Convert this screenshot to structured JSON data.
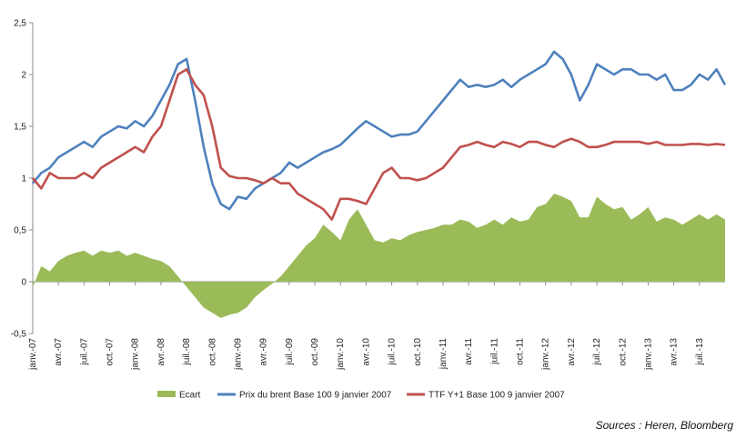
{
  "chart_data": {
    "type": "line",
    "title": "",
    "xlabel": "",
    "ylabel": "",
    "ylim": [
      -0.5,
      2.5
    ],
    "yticks": [
      "2,5",
      "2",
      "1,5",
      "1",
      "0,5",
      "0",
      "-0,5"
    ],
    "ytick_values": [
      2.5,
      2,
      1.5,
      1,
      0.5,
      0,
      -0.5
    ],
    "grid": false,
    "legend_position": "bottom",
    "x_ticks": [
      "janv.-07",
      "avr.-07",
      "juil.-07",
      "oct.-07",
      "janv.-08",
      "avr.-08",
      "juil.-08",
      "oct.-08",
      "janv.-09",
      "avr.-09",
      "juil.-09",
      "oct.-09",
      "janv.-10",
      "avr.-10",
      "juil.-10",
      "oct.-10",
      "janv.-11",
      "avr.-11",
      "juil.-11",
      "oct.-11",
      "janv.-12",
      "avr.-12",
      "juil.-12",
      "oct.-12",
      "janv.-13",
      "avr.-13",
      "juil.-13"
    ],
    "x": [
      "janv.-07",
      "févr.-07",
      "mars-07",
      "avr.-07",
      "mai-07",
      "juin-07",
      "juil.-07",
      "août-07",
      "sept.-07",
      "oct.-07",
      "nov.-07",
      "déc.-07",
      "janv.-08",
      "févr.-08",
      "mars-08",
      "avr.-08",
      "mai-08",
      "juin-08",
      "juil.-08",
      "août-08",
      "sept.-08",
      "oct.-08",
      "nov.-08",
      "déc.-08",
      "janv.-09",
      "févr.-09",
      "mars-09",
      "avr.-09",
      "mai-09",
      "juin-09",
      "juil.-09",
      "août-09",
      "sept.-09",
      "oct.-09",
      "nov.-09",
      "déc.-09",
      "janv.-10",
      "févr.-10",
      "mars-10",
      "avr.-10",
      "mai-10",
      "juin-10",
      "juil.-10",
      "août-10",
      "sept.-10",
      "oct.-10",
      "nov.-10",
      "déc.-10",
      "janv.-11",
      "févr.-11",
      "mars-11",
      "avr.-11",
      "mai-11",
      "juin-11",
      "juil.-11",
      "août-11",
      "sept.-11",
      "oct.-11",
      "nov.-11",
      "déc.-11",
      "janv.-12",
      "févr.-12",
      "mars-12",
      "avr.-12",
      "mai-12",
      "juin-12",
      "juil.-12",
      "août-12",
      "sept.-12",
      "oct.-12",
      "nov.-12",
      "déc.-12",
      "janv.-13",
      "févr.-13",
      "mars-13",
      "avr.-13",
      "mai-13",
      "juin-13",
      "juil.-13",
      "août-13",
      "sept.-13",
      "oct.-13"
    ],
    "series": [
      {
        "name": "Ecart",
        "type": "area",
        "color": "#9bbb59",
        "values": [
          -0.05,
          0.15,
          0.1,
          0.2,
          0.25,
          0.28,
          0.3,
          0.25,
          0.3,
          0.28,
          0.3,
          0.25,
          0.28,
          0.25,
          0.22,
          0.2,
          0.15,
          0.05,
          -0.05,
          -0.15,
          -0.25,
          -0.3,
          -0.35,
          -0.32,
          -0.3,
          -0.25,
          -0.15,
          -0.08,
          -0.02,
          0.05,
          0.15,
          0.25,
          0.35,
          0.42,
          0.55,
          0.48,
          0.4,
          0.6,
          0.7,
          0.55,
          0.4,
          0.38,
          0.42,
          0.4,
          0.45,
          0.48,
          0.5,
          0.52,
          0.55,
          0.55,
          0.6,
          0.58,
          0.52,
          0.55,
          0.6,
          0.55,
          0.62,
          0.58,
          0.6,
          0.72,
          0.75,
          0.85,
          0.82,
          0.78,
          0.62,
          0.62,
          0.82,
          0.75,
          0.7,
          0.72,
          0.6,
          0.65,
          0.72,
          0.58,
          0.62,
          0.6,
          0.55,
          0.6,
          0.65,
          0.6,
          0.65,
          0.6
        ]
      },
      {
        "name": "Prix du brent Base 100 9 janvier 2007",
        "type": "line",
        "color": "#4f81bd",
        "values": [
          0.95,
          1.05,
          1.1,
          1.2,
          1.25,
          1.3,
          1.35,
          1.3,
          1.4,
          1.45,
          1.5,
          1.48,
          1.55,
          1.5,
          1.6,
          1.75,
          1.9,
          2.1,
          2.15,
          1.75,
          1.3,
          0.95,
          0.75,
          0.7,
          0.82,
          0.8,
          0.9,
          0.95,
          1.0,
          1.05,
          1.15,
          1.1,
          1.15,
          1.2,
          1.25,
          1.28,
          1.32,
          1.4,
          1.48,
          1.55,
          1.5,
          1.45,
          1.4,
          1.42,
          1.42,
          1.45,
          1.55,
          1.65,
          1.75,
          1.85,
          1.95,
          1.88,
          1.9,
          1.88,
          1.9,
          1.95,
          1.88,
          1.95,
          2.0,
          2.05,
          2.1,
          2.22,
          2.15,
          2.0,
          1.75,
          1.9,
          2.1,
          2.05,
          2.0,
          2.05,
          2.05,
          2.0,
          2.0,
          1.95,
          2.0,
          1.85,
          1.85,
          1.9,
          2.0,
          1.95,
          2.05,
          1.9
        ]
      },
      {
        "name": "TTF Y+1 Base 100 9 janvier 2007",
        "type": "line",
        "color": "#c0504d",
        "values": [
          1.0,
          0.9,
          1.05,
          1.0,
          1.0,
          1.0,
          1.05,
          1.0,
          1.1,
          1.15,
          1.2,
          1.25,
          1.3,
          1.25,
          1.4,
          1.5,
          1.75,
          2.0,
          2.05,
          1.9,
          1.8,
          1.5,
          1.1,
          1.02,
          1.0,
          1.0,
          0.98,
          0.95,
          1.0,
          0.95,
          0.95,
          0.85,
          0.8,
          0.75,
          0.7,
          0.6,
          0.8,
          0.8,
          0.78,
          0.75,
          0.9,
          1.05,
          1.1,
          1.0,
          1.0,
          0.98,
          1.0,
          1.05,
          1.1,
          1.2,
          1.3,
          1.32,
          1.35,
          1.32,
          1.3,
          1.35,
          1.33,
          1.3,
          1.35,
          1.35,
          1.32,
          1.3,
          1.35,
          1.38,
          1.35,
          1.3,
          1.3,
          1.32,
          1.35,
          1.35,
          1.35,
          1.35,
          1.33,
          1.35,
          1.32,
          1.32,
          1.32,
          1.33,
          1.33,
          1.32,
          1.33,
          1.32
        ]
      }
    ]
  },
  "legend": {
    "items": [
      {
        "label": "Ecart",
        "swatch": "area",
        "color": "#9bbb59"
      },
      {
        "label": "Prix du brent Base 100 9 janvier 2007",
        "swatch": "line",
        "color": "#4f81bd"
      },
      {
        "label": "TTF Y+1 Base 100 9 janvier 2007",
        "swatch": "line",
        "color": "#c0504d"
      }
    ]
  },
  "source_note": "Sources : Heren, Bloomberg"
}
